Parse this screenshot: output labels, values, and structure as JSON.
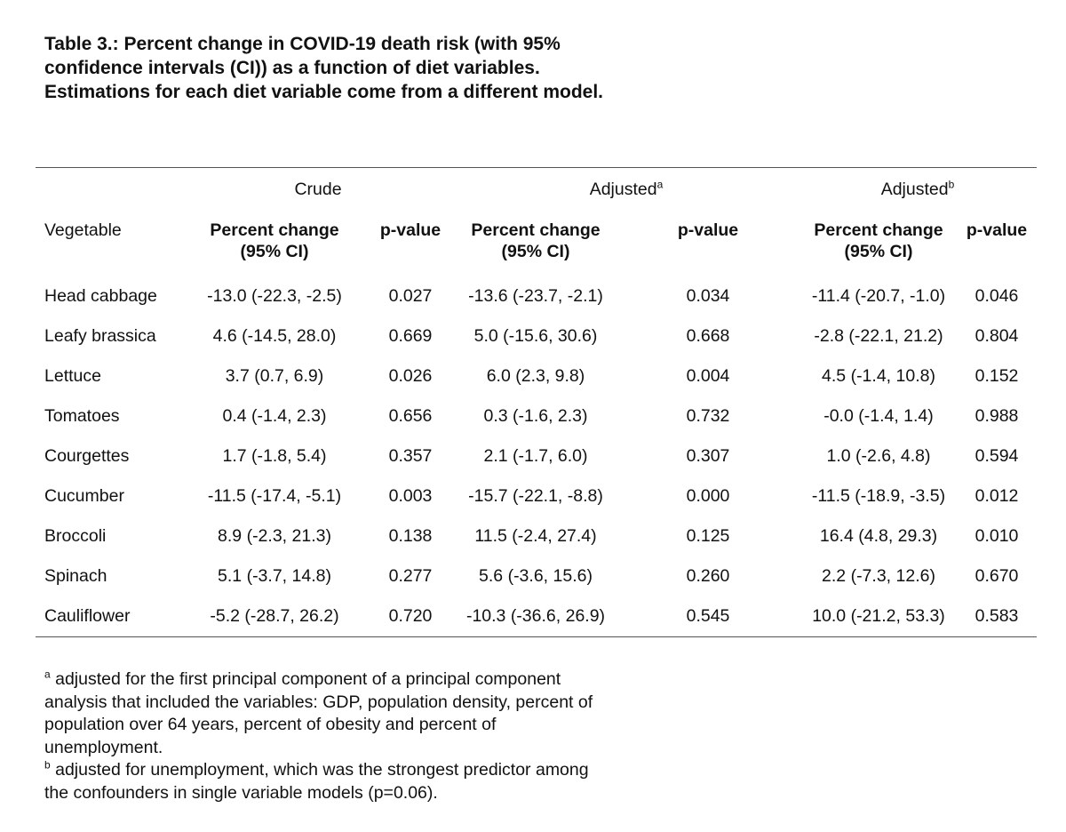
{
  "caption": "Table 3.: Percent change in COVID-19 death risk (with 95% confidence intervals (CI)) as a function of diet variables. Estimations for each diet variable come from a different model.",
  "groups": {
    "crude": "Crude",
    "adjusted_a": "Adjusted",
    "adjusted_a_sup": "a",
    "adjusted_b": "Adjusted",
    "adjusted_b_sup": "b"
  },
  "headers": {
    "vegetable": "Vegetable",
    "pc_line1": "Percent change",
    "pc_line2": "(95% CI)",
    "pvalue": "p-value"
  },
  "rows": [
    {
      "veg": "Head cabbage",
      "c_pc": "-13.0 (-22.3, -2.5)",
      "c_p": "0.027",
      "a_pc": "-13.6 (-23.7, -2.1)",
      "a_p": "0.034",
      "b_pc": "-11.4 (-20.7, -1.0)",
      "b_p": "0.046"
    },
    {
      "veg": "Leafy brassica",
      "c_pc": "4.6 (-14.5, 28.0)",
      "c_p": "0.669",
      "a_pc": "5.0 (-15.6, 30.6)",
      "a_p": "0.668",
      "b_pc": "-2.8 (-22.1, 21.2)",
      "b_p": "0.804"
    },
    {
      "veg": "Lettuce",
      "c_pc": "3.7 (0.7, 6.9)",
      "c_p": "0.026",
      "a_pc": "6.0 (2.3, 9.8)",
      "a_p": "0.004",
      "b_pc": "4.5 (-1.4, 10.8)",
      "b_p": "0.152"
    },
    {
      "veg": "Tomatoes",
      "c_pc": "0.4 (-1.4, 2.3)",
      "c_p": "0.656",
      "a_pc": "0.3 (-1.6, 2.3)",
      "a_p": "0.732",
      "b_pc": "-0.0 (-1.4, 1.4)",
      "b_p": "0.988"
    },
    {
      "veg": "Courgettes",
      "c_pc": "1.7 (-1.8, 5.4)",
      "c_p": "0.357",
      "a_pc": "2.1 (-1.7, 6.0)",
      "a_p": "0.307",
      "b_pc": "1.0 (-2.6, 4.8)",
      "b_p": "0.594"
    },
    {
      "veg": "Cucumber",
      "c_pc": "-11.5 (-17.4, -5.1)",
      "c_p": "0.003",
      "a_pc": "-15.7 (-22.1, -8.8)",
      "a_p": "0.000",
      "b_pc": "-11.5 (-18.9, -3.5)",
      "b_p": "0.012"
    },
    {
      "veg": "Broccoli",
      "c_pc": "8.9 (-2.3, 21.3)",
      "c_p": "0.138",
      "a_pc": "11.5 (-2.4, 27.4)",
      "a_p": "0.125",
      "b_pc": "16.4 (4.8, 29.3)",
      "b_p": "0.010"
    },
    {
      "veg": "Spinach",
      "c_pc": "5.1 (-3.7, 14.8)",
      "c_p": "0.277",
      "a_pc": "5.6 (-3.6, 15.6)",
      "a_p": "0.260",
      "b_pc": "2.2 (-7.3, 12.6)",
      "b_p": "0.670"
    },
    {
      "veg": "Cauliflower",
      "c_pc": "-5.2 (-28.7, 26.2)",
      "c_p": "0.720",
      "a_pc": "-10.3 (-36.6, 26.9)",
      "a_p": "0.545",
      "b_pc": "10.0 (-21.2, 53.3)",
      "b_p": "0.583"
    }
  ],
  "footnotes": {
    "a_mark": "a",
    "a_text": "adjusted for the first principal component of a principal component analysis that included the variables: GDP, population density, percent of population over 64 years, percent of obesity and percent of unemployment.",
    "b_mark": "b",
    "b_text": "adjusted for unemployment, which was the strongest predictor among the confounders in single variable models (p=0.06)."
  }
}
